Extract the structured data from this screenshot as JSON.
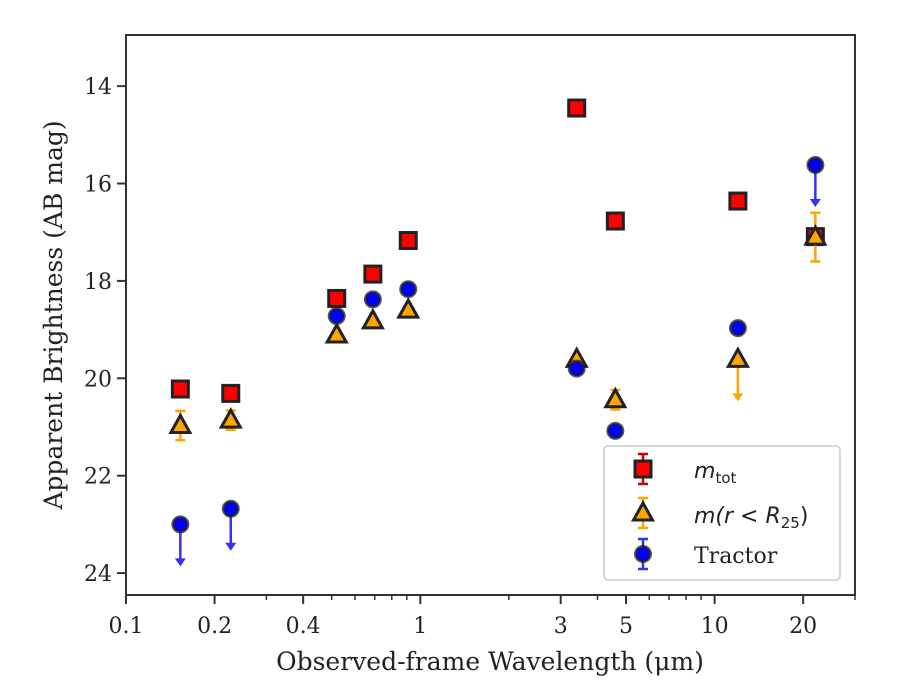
{
  "chart_data": {
    "type": "scatter",
    "xlabel": "Observed-frame Wavelength (μm)",
    "ylabel": "Apparent Brightness (AB mag)",
    "xscale": "log",
    "yaxis_inverted": true,
    "xlim": [
      0.1,
      30
    ],
    "ylim": [
      24.45,
      12.95
    ],
    "xticks": [
      {
        "value": 0.1,
        "label": "0.1"
      },
      {
        "value": 0.2,
        "label": "0.2"
      },
      {
        "value": 0.4,
        "label": "0.4"
      },
      {
        "value": 1,
        "label": "1"
      },
      {
        "value": 3,
        "label": "3"
      },
      {
        "value": 5,
        "label": "5"
      },
      {
        "value": 10,
        "label": "10"
      },
      {
        "value": 20,
        "label": "20"
      }
    ],
    "yticks": [
      {
        "value": 14,
        "label": "14"
      },
      {
        "value": 16,
        "label": "16"
      },
      {
        "value": 18,
        "label": "18"
      },
      {
        "value": 20,
        "label": "20"
      },
      {
        "value": 22,
        "label": "22"
      },
      {
        "value": 24,
        "label": "24"
      }
    ],
    "legend_position": "lower-right",
    "series": [
      {
        "name": "m_tot",
        "marker": "square",
        "color": "#ff0000",
        "errcolor": "#cc0000",
        "points": [
          {
            "x": 0.153,
            "y": 20.22
          },
          {
            "x": 0.227,
            "y": 20.31
          },
          {
            "x": 0.52,
            "y": 18.36
          },
          {
            "x": 0.69,
            "y": 17.86
          },
          {
            "x": 0.91,
            "y": 17.17
          },
          {
            "x": 3.4,
            "y": 14.45
          },
          {
            "x": 4.6,
            "y": 16.77
          },
          {
            "x": 12.0,
            "y": 16.36
          },
          {
            "x": 22.0,
            "y": 17.09
          }
        ]
      },
      {
        "name": "m(r<R25)",
        "marker": "triangle",
        "color": "#ffa500",
        "errcolor": "#ffa500",
        "points": [
          {
            "x": 0.153,
            "y": 20.97,
            "err": 0.3
          },
          {
            "x": 0.227,
            "y": 20.86,
            "err": 0.2
          },
          {
            "x": 0.52,
            "y": 19.11
          },
          {
            "x": 0.69,
            "y": 18.82
          },
          {
            "x": 0.91,
            "y": 18.6
          },
          {
            "x": 3.4,
            "y": 19.61
          },
          {
            "x": 4.6,
            "y": 20.44,
            "err": 0.2
          },
          {
            "x": 12.0,
            "y": 19.61,
            "upper_limit": true
          },
          {
            "x": 22.0,
            "y": 17.1,
            "err": 0.5
          }
        ]
      },
      {
        "name": "Tractor",
        "marker": "circle",
        "color": "#0000ff",
        "errcolor": "#3333ee",
        "points": [
          {
            "x": 0.153,
            "y": 23.0,
            "upper_limit": true
          },
          {
            "x": 0.227,
            "y": 22.68,
            "upper_limit": true
          },
          {
            "x": 0.52,
            "y": 18.72
          },
          {
            "x": 0.69,
            "y": 18.38
          },
          {
            "x": 0.91,
            "y": 18.17
          },
          {
            "x": 3.4,
            "y": 19.8
          },
          {
            "x": 4.6,
            "y": 21.08
          },
          {
            "x": 12.0,
            "y": 18.97
          },
          {
            "x": 22.0,
            "y": 15.62,
            "upper_limit": true
          }
        ]
      }
    ]
  },
  "legend": {
    "mtot_main": "m",
    "mtot_sub": "tot",
    "mr_label": "m(r < R",
    "mr_sub": "25",
    "mr_close": ")",
    "tractor_label": "Tractor"
  },
  "colors": {
    "axis": "#333333",
    "marker_edge": "#222222",
    "legend_border": "#cccccc"
  }
}
